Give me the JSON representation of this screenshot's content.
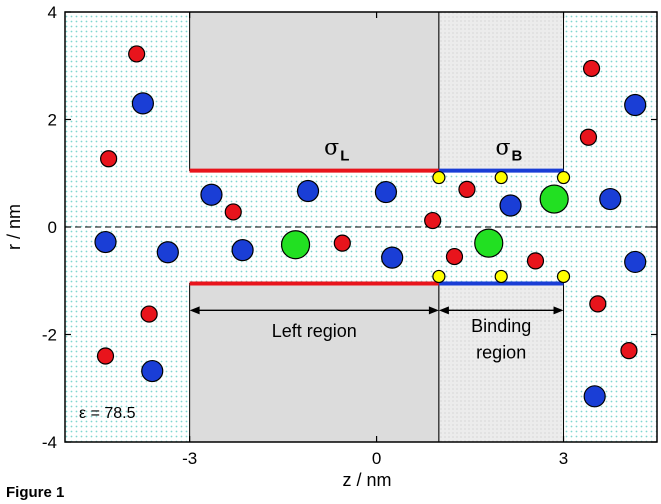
{
  "axes": {
    "xlabel": "z / nm",
    "ylabel": "r / nm",
    "xlim": [
      -5,
      4.5
    ],
    "ylim": [
      -4,
      4
    ],
    "xticks": [
      -3,
      0,
      3
    ],
    "yticks": [
      -4,
      -2,
      0,
      2,
      4
    ],
    "xtick_labels": [
      "-3",
      "0",
      "3"
    ],
    "ytick_labels": [
      "-4",
      "-2",
      "0",
      "2",
      "4"
    ]
  },
  "labels": {
    "sigma_L": "σ",
    "sigma_L_sub": "L",
    "sigma_B": "σ",
    "sigma_B_sub": "B",
    "left_region": "Left region",
    "binding_region_line1": "Binding",
    "binding_region_line2": "region",
    "epsilon": "ε = 78.5",
    "caption": "Figure 1"
  },
  "colors": {
    "red_ion": "#e8141c",
    "blue_ion": "#1a3ed6",
    "green_ion": "#22e022",
    "yellow_ion": "#ffff00",
    "left_line": "#e8141c",
    "binding_line": "#1a3ed6",
    "membrane_fill": "#dcdcdc",
    "solvent_dots": "#7fd6d0"
  },
  "regions": {
    "membrane_left": [
      -3,
      1
    ],
    "membrane_binding": [
      1,
      3
    ],
    "pore_radius": 1.05
  },
  "particles": {
    "red": [
      [
        -3.85,
        3.22
      ],
      [
        -4.3,
        1.27
      ],
      [
        -2.3,
        0.28
      ],
      [
        -0.55,
        -0.3
      ],
      [
        0.9,
        0.12
      ],
      [
        1.45,
        0.7
      ],
      [
        1.25,
        -0.55
      ],
      [
        2.55,
        -0.63
      ],
      [
        -3.65,
        -1.62
      ],
      [
        -4.35,
        -2.4
      ],
      [
        3.45,
        2.95
      ],
      [
        3.4,
        1.67
      ],
      [
        3.55,
        -1.43
      ],
      [
        4.05,
        -2.3
      ]
    ],
    "blue": [
      [
        -3.75,
        2.3
      ],
      [
        -4.35,
        -0.28
      ],
      [
        -3.35,
        -0.47
      ],
      [
        -2.65,
        0.6
      ],
      [
        -2.15,
        -0.43
      ],
      [
        -1.1,
        0.67
      ],
      [
        0.15,
        0.65
      ],
      [
        0.25,
        -0.57
      ],
      [
        2.15,
        0.4
      ],
      [
        -3.6,
        -2.68
      ],
      [
        3.75,
        0.52
      ],
      [
        4.15,
        2.27
      ],
      [
        4.15,
        -0.65
      ],
      [
        3.5,
        -3.15
      ]
    ],
    "green": [
      [
        -1.3,
        -0.33
      ],
      [
        1.8,
        -0.3
      ],
      [
        2.85,
        0.52
      ]
    ],
    "yellow": [
      [
        1.0,
        0.92
      ],
      [
        2.0,
        0.92
      ],
      [
        3.0,
        0.92
      ],
      [
        1.0,
        -0.92
      ],
      [
        2.0,
        -0.92
      ],
      [
        3.0,
        -0.92
      ]
    ]
  }
}
